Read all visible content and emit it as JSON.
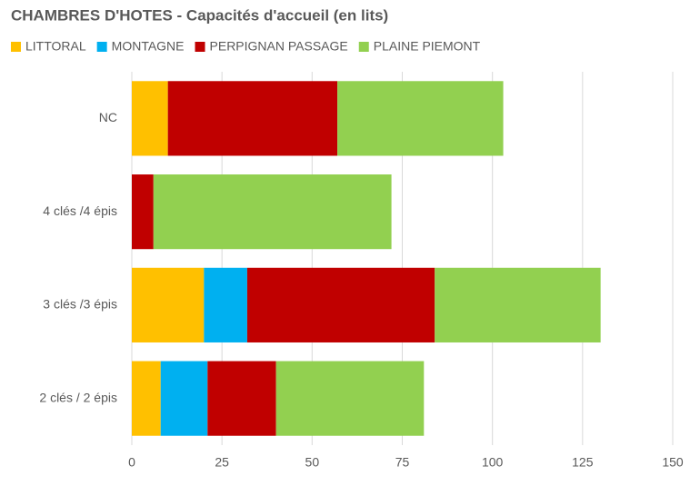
{
  "chart_data": {
    "type": "stacked-barh",
    "title": "CHAMBRES D'HOTES - Capacités d'accueil (en lits)",
    "categories": [
      "NC",
      "4 clés /4 épis",
      "3 clés /3 épis",
      "2 clés / 2 épis"
    ],
    "series": [
      {
        "name": "LITTORAL",
        "color": "#ffc000",
        "values": [
          10,
          0,
          20,
          8
        ]
      },
      {
        "name": "MONTAGNE",
        "color": "#00b0f0",
        "values": [
          0,
          0,
          12,
          13
        ]
      },
      {
        "name": "PERPIGNAN PASSAGE",
        "color": "#c00000",
        "values": [
          47,
          6,
          52,
          19
        ]
      },
      {
        "name": "PLAINE PIEMONT",
        "color": "#92d050",
        "values": [
          46,
          66,
          46,
          41
        ]
      }
    ],
    "xlim": [
      0,
      150
    ],
    "xticks": [
      0,
      25,
      50,
      75,
      100,
      125,
      150
    ],
    "grid": true,
    "legend": "top"
  }
}
